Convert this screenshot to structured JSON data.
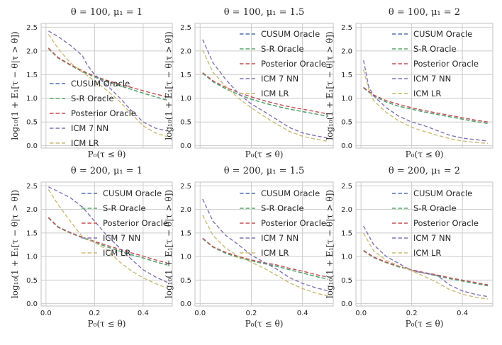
{
  "chart_data": [
    {
      "type": "line",
      "title": "θ = 100, μ₁ = 1",
      "xlabel": "P₀(τ ≤ θ)",
      "ylabel": "log₁₀(1 + E₁[τ − θ|τ > θ])",
      "xlim": [
        -0.02,
        0.52
      ],
      "ylim": [
        -0.05,
        2.58
      ],
      "xticks": [],
      "yticks": [
        0.0,
        0.5,
        1.0,
        1.5,
        2.0,
        2.5
      ],
      "xtick_labels": [],
      "ytick_labels": [
        "0.0",
        "0.5",
        "1.0",
        "1.5",
        "2.0",
        "2.5"
      ],
      "grid": true,
      "legend_position": "center-left",
      "series": [
        {
          "name": "CUSUM Oracle",
          "color": "#4c72b0",
          "x": [
            0.01,
            0.05,
            0.1,
            0.15,
            0.2,
            0.25,
            0.3,
            0.35,
            0.4,
            0.45,
            0.5
          ],
          "y": [
            2.05,
            1.85,
            1.7,
            1.56,
            1.45,
            1.35,
            1.27,
            1.19,
            1.11,
            1.03,
            0.96
          ]
        },
        {
          "name": "S-R Oracle",
          "color": "#55a868",
          "x": [
            0.01,
            0.05,
            0.1,
            0.15,
            0.2,
            0.25,
            0.3,
            0.35,
            0.4,
            0.45,
            0.5
          ],
          "y": [
            2.05,
            1.85,
            1.7,
            1.56,
            1.45,
            1.35,
            1.27,
            1.19,
            1.11,
            1.03,
            0.96
          ]
        },
        {
          "name": "Posterior Oracle",
          "color": "#c44e52",
          "x": [
            0.01,
            0.05,
            0.1,
            0.15,
            0.2,
            0.25,
            0.3,
            0.35,
            0.4,
            0.45,
            0.5
          ],
          "y": [
            2.06,
            1.86,
            1.71,
            1.58,
            1.47,
            1.38,
            1.3,
            1.23,
            1.16,
            1.09,
            1.03
          ]
        },
        {
          "name": "ICM 7 NN",
          "color": "#8172b3",
          "x": [
            0.01,
            0.05,
            0.1,
            0.15,
            0.17,
            0.2,
            0.25,
            0.3,
            0.35,
            0.4,
            0.45,
            0.5
          ],
          "y": [
            2.42,
            2.3,
            2.12,
            1.9,
            1.7,
            1.5,
            1.28,
            1.03,
            0.75,
            0.5,
            0.37,
            0.31
          ]
        },
        {
          "name": "ICM LR",
          "color": "#ccb974",
          "x": [
            0.01,
            0.05,
            0.1,
            0.15,
            0.2,
            0.25,
            0.3,
            0.35,
            0.4,
            0.45,
            0.5
          ],
          "y": [
            2.35,
            2.05,
            1.75,
            1.55,
            1.37,
            1.17,
            0.95,
            0.68,
            0.42,
            0.27,
            0.19
          ]
        }
      ]
    },
    {
      "type": "line",
      "title": "θ = 100, μ₁ = 1.5",
      "xlabel": "P₀(τ ≤ θ)",
      "ylabel": "log₁₀(1 + E₁[τ − θ|τ > θ])",
      "xlim": [
        -0.02,
        0.52
      ],
      "ylim": [
        -0.05,
        2.58
      ],
      "xticks": [],
      "yticks": [
        0.0,
        0.5,
        1.0,
        1.5,
        2.0,
        2.5
      ],
      "xtick_labels": [],
      "ytick_labels": [
        "0.0",
        "0.5",
        "1.0",
        "1.5",
        "2.0",
        "2.5"
      ],
      "grid": true,
      "legend_position": "top-right",
      "series": [
        {
          "name": "CUSUM Oracle",
          "color": "#4c72b0",
          "x": [
            0.01,
            0.05,
            0.1,
            0.15,
            0.2,
            0.25,
            0.3,
            0.35,
            0.4,
            0.45,
            0.5
          ],
          "y": [
            1.53,
            1.35,
            1.2,
            1.08,
            0.98,
            0.9,
            0.83,
            0.77,
            0.72,
            0.67,
            0.62
          ]
        },
        {
          "name": "S-R Oracle",
          "color": "#55a868",
          "x": [
            0.01,
            0.05,
            0.1,
            0.15,
            0.2,
            0.25,
            0.3,
            0.35,
            0.4,
            0.45,
            0.5
          ],
          "y": [
            1.53,
            1.35,
            1.2,
            1.08,
            0.98,
            0.9,
            0.83,
            0.77,
            0.72,
            0.67,
            0.62
          ]
        },
        {
          "name": "Posterior Oracle",
          "color": "#c44e52",
          "x": [
            0.01,
            0.05,
            0.1,
            0.15,
            0.2,
            0.25,
            0.3,
            0.35,
            0.4,
            0.45,
            0.5
          ],
          "y": [
            1.54,
            1.37,
            1.23,
            1.12,
            1.03,
            0.95,
            0.88,
            0.82,
            0.77,
            0.72,
            0.67
          ]
        },
        {
          "name": "ICM 7 NN",
          "color": "#8172b3",
          "x": [
            0.01,
            0.05,
            0.1,
            0.15,
            0.2,
            0.25,
            0.3,
            0.35,
            0.4,
            0.45,
            0.5
          ],
          "y": [
            2.24,
            1.75,
            1.4,
            1.1,
            0.88,
            0.72,
            0.55,
            0.38,
            0.27,
            0.21,
            0.16
          ]
        },
        {
          "name": "ICM LR",
          "color": "#ccb974",
          "x": [
            0.01,
            0.05,
            0.1,
            0.15,
            0.2,
            0.25,
            0.3,
            0.35,
            0.4,
            0.45,
            0.5
          ],
          "y": [
            2.02,
            1.55,
            1.25,
            1.0,
            0.8,
            0.62,
            0.45,
            0.3,
            0.2,
            0.14,
            0.09
          ]
        }
      ]
    },
    {
      "type": "line",
      "title": "θ = 100, μ₁ = 2",
      "xlabel": "P₀(τ ≤ θ)",
      "ylabel": "log₁₀(1 + E₁[τ − θ|τ > θ])",
      "xlim": [
        -0.02,
        0.52
      ],
      "ylim": [
        -0.05,
        2.58
      ],
      "xticks": [],
      "yticks": [
        0.0,
        0.5,
        1.0,
        1.5,
        2.0,
        2.5
      ],
      "xtick_labels": [],
      "ytick_labels": [
        "0.0",
        "0.5",
        "1.0",
        "1.5",
        "2.0",
        "2.5"
      ],
      "grid": true,
      "legend_position": "top-right",
      "series": [
        {
          "name": "CUSUM Oracle",
          "color": "#4c72b0",
          "x": [
            0.01,
            0.05,
            0.1,
            0.15,
            0.2,
            0.25,
            0.3,
            0.35,
            0.4,
            0.45,
            0.5
          ],
          "y": [
            1.22,
            1.05,
            0.92,
            0.83,
            0.77,
            0.71,
            0.66,
            0.61,
            0.56,
            0.51,
            0.47
          ]
        },
        {
          "name": "S-R Oracle",
          "color": "#55a868",
          "x": [
            0.01,
            0.05,
            0.1,
            0.15,
            0.2,
            0.25,
            0.3,
            0.35,
            0.4,
            0.45,
            0.5
          ],
          "y": [
            1.22,
            1.05,
            0.92,
            0.83,
            0.77,
            0.71,
            0.66,
            0.61,
            0.56,
            0.51,
            0.47
          ]
        },
        {
          "name": "Posterior Oracle",
          "color": "#c44e52",
          "x": [
            0.01,
            0.05,
            0.1,
            0.15,
            0.2,
            0.25,
            0.3,
            0.35,
            0.4,
            0.45,
            0.5
          ],
          "y": [
            1.23,
            1.07,
            0.95,
            0.87,
            0.8,
            0.74,
            0.69,
            0.64,
            0.59,
            0.54,
            0.5
          ]
        },
        {
          "name": "ICM 7 NN",
          "color": "#8172b3",
          "x": [
            0.01,
            0.03,
            0.05,
            0.1,
            0.15,
            0.2,
            0.25,
            0.3,
            0.35,
            0.4,
            0.45,
            0.5
          ],
          "y": [
            1.8,
            1.25,
            1.05,
            0.8,
            0.62,
            0.5,
            0.42,
            0.32,
            0.22,
            0.16,
            0.13,
            0.1
          ]
        },
        {
          "name": "ICM LR",
          "color": "#ccb974",
          "x": [
            0.01,
            0.03,
            0.05,
            0.1,
            0.15,
            0.2,
            0.25,
            0.3,
            0.35,
            0.4,
            0.45,
            0.5
          ],
          "y": [
            1.6,
            1.2,
            0.95,
            0.7,
            0.52,
            0.39,
            0.3,
            0.22,
            0.15,
            0.1,
            0.07,
            0.05
          ]
        }
      ]
    },
    {
      "type": "line",
      "title": "θ = 200, μ₁ = 1",
      "xlabel": "P₀(τ ≤ θ)",
      "ylabel": "log₁₀(1 + E₁[τ − θ|τ > θ])",
      "xlim": [
        -0.02,
        0.52
      ],
      "ylim": [
        -0.05,
        2.58
      ],
      "xticks": [
        0.0,
        0.2,
        0.4
      ],
      "yticks": [
        0.0,
        0.5,
        1.0,
        1.5,
        2.0,
        2.5
      ],
      "xtick_labels": [
        "0.0",
        "0.2",
        "0.4"
      ],
      "ytick_labels": [
        "0.0",
        "0.5",
        "1.0",
        "1.5",
        "2.0",
        "2.5"
      ],
      "grid": true,
      "legend_position": "top-right",
      "series": [
        {
          "name": "CUSUM Oracle",
          "color": "#4c72b0",
          "x": [
            0.01,
            0.05,
            0.1,
            0.15,
            0.2,
            0.25,
            0.3,
            0.35,
            0.4,
            0.45,
            0.5
          ],
          "y": [
            1.82,
            1.62,
            1.5,
            1.4,
            1.3,
            1.21,
            1.12,
            1.04,
            0.97,
            0.89,
            0.82
          ]
        },
        {
          "name": "S-R Oracle",
          "color": "#55a868",
          "x": [
            0.01,
            0.05,
            0.1,
            0.15,
            0.2,
            0.25,
            0.3,
            0.35,
            0.4,
            0.45,
            0.5
          ],
          "y": [
            1.82,
            1.62,
            1.5,
            1.4,
            1.3,
            1.21,
            1.12,
            1.04,
            0.97,
            0.89,
            0.82
          ]
        },
        {
          "name": "Posterior Oracle",
          "color": "#c44e52",
          "x": [
            0.01,
            0.05,
            0.1,
            0.15,
            0.2,
            0.25,
            0.3,
            0.35,
            0.4,
            0.45,
            0.5
          ],
          "y": [
            1.83,
            1.63,
            1.51,
            1.41,
            1.32,
            1.24,
            1.16,
            1.08,
            1.01,
            0.93,
            0.86
          ]
        },
        {
          "name": "ICM 7 NN",
          "color": "#8172b3",
          "x": [
            0.01,
            0.05,
            0.1,
            0.15,
            0.2,
            0.25,
            0.3,
            0.35,
            0.4,
            0.45,
            0.5
          ],
          "y": [
            2.48,
            2.38,
            2.25,
            2.05,
            1.75,
            1.45,
            1.2,
            0.95,
            0.72,
            0.57,
            0.45
          ]
        },
        {
          "name": "ICM LR",
          "color": "#ccb974",
          "x": [
            0.01,
            0.05,
            0.1,
            0.15,
            0.2,
            0.25,
            0.3,
            0.35,
            0.4,
            0.45,
            0.5
          ],
          "y": [
            2.42,
            2.1,
            1.75,
            1.42,
            1.3,
            1.15,
            0.9,
            0.7,
            0.55,
            0.43,
            0.33
          ]
        }
      ]
    },
    {
      "type": "line",
      "title": "θ = 200, μ₁ = 1.5",
      "xlabel": "P₀(τ ≤ θ)",
      "ylabel": "log₁₀(1 + E₁[τ − θ|τ > θ])",
      "xlim": [
        -0.02,
        0.52
      ],
      "ylim": [
        -0.05,
        2.58
      ],
      "xticks": [
        0.0,
        0.2,
        0.4
      ],
      "yticks": [
        0.0,
        0.5,
        1.0,
        1.5,
        2.0,
        2.5
      ],
      "xtick_labels": [
        "0.0",
        "0.2",
        "0.4"
      ],
      "ytick_labels": [
        "0.0",
        "0.5",
        "1.0",
        "1.5",
        "2.0",
        "2.5"
      ],
      "grid": true,
      "legend_position": "top-right",
      "series": [
        {
          "name": "CUSUM Oracle",
          "color": "#4c72b0",
          "x": [
            0.01,
            0.05,
            0.1,
            0.15,
            0.2,
            0.25,
            0.3,
            0.35,
            0.4,
            0.45,
            0.5
          ],
          "y": [
            1.38,
            1.2,
            1.07,
            0.98,
            0.91,
            0.85,
            0.79,
            0.72,
            0.65,
            0.58,
            0.52
          ]
        },
        {
          "name": "S-R Oracle",
          "color": "#55a868",
          "x": [
            0.01,
            0.05,
            0.1,
            0.15,
            0.2,
            0.25,
            0.3,
            0.35,
            0.4,
            0.45,
            0.5
          ],
          "y": [
            1.38,
            1.2,
            1.07,
            0.98,
            0.91,
            0.85,
            0.79,
            0.72,
            0.65,
            0.58,
            0.52
          ]
        },
        {
          "name": "Posterior Oracle",
          "color": "#c44e52",
          "x": [
            0.01,
            0.05,
            0.1,
            0.15,
            0.2,
            0.25,
            0.3,
            0.35,
            0.4,
            0.45,
            0.5
          ],
          "y": [
            1.39,
            1.21,
            1.09,
            1.0,
            0.93,
            0.87,
            0.82,
            0.75,
            0.69,
            0.62,
            0.56
          ]
        },
        {
          "name": "ICM 7 NN",
          "color": "#8172b3",
          "x": [
            0.01,
            0.05,
            0.1,
            0.15,
            0.2,
            0.25,
            0.3,
            0.35,
            0.4,
            0.45,
            0.5
          ],
          "y": [
            2.22,
            1.75,
            1.45,
            1.25,
            1.03,
            0.88,
            0.73,
            0.55,
            0.43,
            0.34,
            0.27
          ]
        },
        {
          "name": "ICM LR",
          "color": "#ccb974",
          "x": [
            0.01,
            0.05,
            0.1,
            0.15,
            0.2,
            0.25,
            0.3,
            0.35,
            0.4,
            0.45,
            0.5
          ],
          "y": [
            1.88,
            1.45,
            1.18,
            1.0,
            0.88,
            0.75,
            0.6,
            0.44,
            0.32,
            0.23,
            0.16
          ]
        }
      ]
    },
    {
      "type": "line",
      "title": "θ = 200, μ₁ = 2",
      "xlabel": "P₀(τ ≤ θ)",
      "ylabel": "log₁₀(1 + E₁[τ − θ|τ > θ])",
      "xlim": [
        -0.02,
        0.52
      ],
      "ylim": [
        -0.05,
        2.58
      ],
      "xticks": [
        0.0,
        0.2,
        0.4
      ],
      "yticks": [
        0.0,
        0.5,
        1.0,
        1.5,
        2.0,
        2.5
      ],
      "xtick_labels": [
        "0.0",
        "0.2",
        "0.4"
      ],
      "ytick_labels": [
        "0.0",
        "0.5",
        "1.0",
        "1.5",
        "2.0",
        "2.5"
      ],
      "grid": true,
      "legend_position": "top-right",
      "series": [
        {
          "name": "CUSUM Oracle",
          "color": "#4c72b0",
          "x": [
            0.01,
            0.05,
            0.1,
            0.15,
            0.2,
            0.25,
            0.3,
            0.35,
            0.4,
            0.45,
            0.5
          ],
          "y": [
            1.12,
            0.98,
            0.87,
            0.78,
            0.71,
            0.65,
            0.59,
            0.53,
            0.48,
            0.43,
            0.38
          ]
        },
        {
          "name": "S-R Oracle",
          "color": "#55a868",
          "x": [
            0.01,
            0.05,
            0.1,
            0.15,
            0.2,
            0.25,
            0.3,
            0.35,
            0.4,
            0.45,
            0.5
          ],
          "y": [
            1.12,
            0.98,
            0.87,
            0.78,
            0.71,
            0.65,
            0.59,
            0.53,
            0.48,
            0.43,
            0.38
          ]
        },
        {
          "name": "Posterior Oracle",
          "color": "#c44e52",
          "x": [
            0.01,
            0.05,
            0.1,
            0.15,
            0.2,
            0.25,
            0.3,
            0.35,
            0.4,
            0.45,
            0.5
          ],
          "y": [
            1.13,
            0.99,
            0.88,
            0.79,
            0.72,
            0.66,
            0.61,
            0.55,
            0.5,
            0.45,
            0.4
          ]
        },
        {
          "name": "ICM 7 NN",
          "color": "#8172b3",
          "x": [
            0.01,
            0.05,
            0.1,
            0.15,
            0.2,
            0.25,
            0.3,
            0.35,
            0.4,
            0.45,
            0.5
          ],
          "y": [
            1.65,
            1.25,
            1.0,
            0.85,
            0.7,
            0.65,
            0.6,
            0.4,
            0.27,
            0.2,
            0.15
          ]
        },
        {
          "name": "ICM LR",
          "color": "#ccb974",
          "x": [
            0.01,
            0.05,
            0.1,
            0.15,
            0.2,
            0.25,
            0.3,
            0.35,
            0.4,
            0.45,
            0.5
          ],
          "y": [
            1.5,
            1.12,
            0.92,
            0.8,
            0.7,
            0.58,
            0.45,
            0.3,
            0.2,
            0.14,
            0.1
          ]
        }
      ]
    }
  ]
}
